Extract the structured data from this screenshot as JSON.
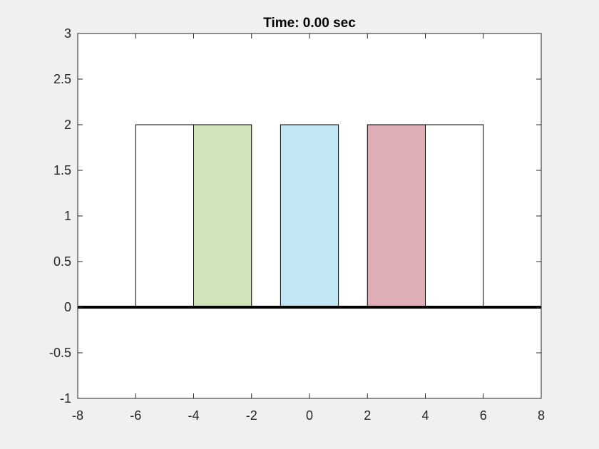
{
  "chart_data": {
    "type": "bar",
    "title": "Time: 0.00 sec",
    "xlabel": "",
    "ylabel": "",
    "xlim": [
      -8,
      8
    ],
    "ylim": [
      -1,
      3
    ],
    "xticks": [
      -8,
      -6,
      -4,
      -2,
      0,
      2,
      4,
      6,
      8
    ],
    "xtick_labels": [
      "-8",
      "-6",
      "-4",
      "-2",
      "0",
      "2",
      "4",
      "6",
      "8"
    ],
    "yticks": [
      -1,
      -0.5,
      0,
      0.5,
      1,
      1.5,
      2,
      2.5,
      3
    ],
    "ytick_labels": [
      "-1",
      "-0.5",
      "0",
      "0.5",
      "1",
      "1.5",
      "2",
      "2.5",
      "3"
    ],
    "grid": false,
    "rectangles": [
      {
        "x0": -6,
        "x1": -4,
        "y0": 0,
        "y1": 2,
        "color": "#ffffff"
      },
      {
        "x0": -4,
        "x1": -2,
        "y0": 0,
        "y1": 2,
        "color": "#d1e3b8"
      },
      {
        "x0": -1,
        "x1": 1,
        "y0": 0,
        "y1": 2,
        "color": "#c1e7f5"
      },
      {
        "x0": 2,
        "x1": 4,
        "y0": 0,
        "y1": 2,
        "color": "#deadb6"
      },
      {
        "x0": 4,
        "x1": 6,
        "y0": 0,
        "y1": 2,
        "color": "#ffffff"
      }
    ],
    "baseline": {
      "y": 0,
      "color": "#000000"
    }
  },
  "colors": {
    "figure_background": "#f0f0f0",
    "axes_background": "#ffffff",
    "axis_line": "#262626",
    "tick_text": "#262626",
    "rect_edge": "#000000"
  }
}
